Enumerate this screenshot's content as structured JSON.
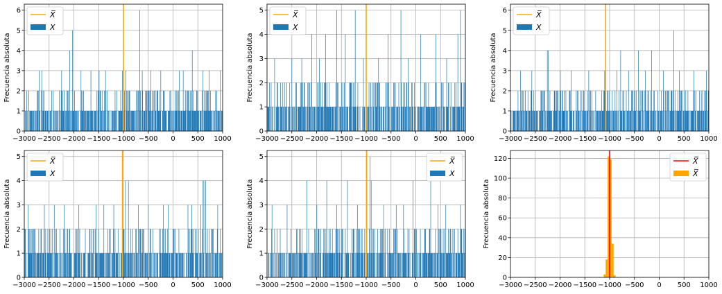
{
  "chart_data": [
    {
      "type": "bar",
      "ylabel": "Frecuencia absoluta",
      "xlim": [
        -3000,
        1000
      ],
      "ylim": [
        0,
        6.3
      ],
      "xticks": [
        "−3000",
        "−2500",
        "−2000",
        "−1500",
        "−1000",
        "−500",
        "0",
        "500",
        "1000"
      ],
      "yticks": [
        "0",
        "1",
        "2",
        "3",
        "4",
        "5",
        "6"
      ],
      "grid": true,
      "legend": {
        "placement": "upper-left",
        "entries": [
          {
            "label": "X̅",
            "kind": "line",
            "color": "#ffa500"
          },
          {
            "label": "X",
            "kind": "patch",
            "color": "#1f77b4"
          }
        ]
      },
      "mean_line": -1000,
      "series": [
        {
          "name": "X",
          "color": "#1f77b4",
          "tall_bars": [
            [
              -2700,
              3
            ],
            [
              -2650,
              3
            ],
            [
              -2420,
              2
            ],
            [
              -2250,
              3
            ],
            [
              -2080,
              4
            ],
            [
              -2030,
              5
            ],
            [
              -1860,
              3
            ],
            [
              -1660,
              3
            ],
            [
              -1490,
              3
            ],
            [
              -1360,
              3
            ],
            [
              -1020,
              3
            ],
            [
              -950,
              3
            ],
            [
              -670,
              6
            ],
            [
              -620,
              3
            ],
            [
              -450,
              3
            ],
            [
              -250,
              3
            ],
            [
              130,
              3
            ],
            [
              200,
              3
            ],
            [
              390,
              4
            ],
            [
              600,
              3
            ],
            [
              730,
              3
            ],
            [
              950,
              3
            ]
          ],
          "seed": 11
        }
      ]
    },
    {
      "type": "bar",
      "ylabel": "Frecuencia absoluta",
      "xlim": [
        -3000,
        1000
      ],
      "ylim": [
        0,
        5.25
      ],
      "xticks": [
        "−3000",
        "−2500",
        "−2000",
        "−1500",
        "−1000",
        "−500",
        "0",
        "500",
        "1000"
      ],
      "yticks": [
        "0",
        "1",
        "2",
        "3",
        "4",
        "5"
      ],
      "grid": true,
      "legend": {
        "placement": "upper-left",
        "entries": [
          {
            "label": "X̅",
            "kind": "line",
            "color": "#ffa500"
          },
          {
            "label": "X",
            "kind": "patch",
            "color": "#1f77b4"
          }
        ]
      },
      "mean_line": -1000,
      "series": [
        {
          "name": "X",
          "color": "#1f77b4",
          "tall_bars": [
            [
              -2850,
              3
            ],
            [
              -2500,
              3
            ],
            [
              -2300,
              3
            ],
            [
              -2100,
              4
            ],
            [
              -1940,
              3
            ],
            [
              -1820,
              4
            ],
            [
              -1600,
              5
            ],
            [
              -1420,
              4
            ],
            [
              -1220,
              5
            ],
            [
              -1060,
              3
            ],
            [
              -750,
              3
            ],
            [
              -560,
              4
            ],
            [
              -300,
              5
            ],
            [
              -150,
              3
            ],
            [
              100,
              4
            ],
            [
              400,
              4
            ],
            [
              620,
              3
            ],
            [
              850,
              4
            ],
            [
              900,
              5
            ]
          ],
          "seed": 23
        }
      ]
    },
    {
      "type": "bar",
      "ylabel": "Frecuencia absoluta",
      "xlim": [
        -3000,
        1000
      ],
      "ylim": [
        0,
        6.3
      ],
      "xticks": [
        "−3000",
        "−2500",
        "−2000",
        "−1500",
        "−1000",
        "−500",
        "0",
        "500",
        "1000"
      ],
      "yticks": [
        "0",
        "1",
        "2",
        "3",
        "4",
        "5",
        "6"
      ],
      "grid": true,
      "legend": {
        "placement": "upper-left",
        "entries": [
          {
            "label": "X̅",
            "kind": "line",
            "color": "#ffa500"
          },
          {
            "label": "X",
            "kind": "patch",
            "color": "#1f77b4"
          }
        ]
      },
      "mean_line": -1080,
      "series": [
        {
          "name": "X",
          "color": "#1f77b4",
          "tall_bars": [
            [
              -2800,
              3
            ],
            [
              -2570,
              3
            ],
            [
              -2260,
              4
            ],
            [
              -2240,
              4
            ],
            [
              -2000,
              3
            ],
            [
              -1780,
              3
            ],
            [
              -1420,
              3
            ],
            [
              -1100,
              3
            ],
            [
              -860,
              3
            ],
            [
              -780,
              4
            ],
            [
              -610,
              3
            ],
            [
              -420,
              4
            ],
            [
              -280,
              3
            ],
            [
              -150,
              4
            ],
            [
              80,
              3
            ],
            [
              290,
              5
            ],
            [
              400,
              3
            ],
            [
              700,
              3
            ],
            [
              950,
              3
            ]
          ],
          "seed": 37
        }
      ]
    },
    {
      "type": "bar",
      "ylabel": "Frecuencia absoluta",
      "xlim": [
        -3000,
        1000
      ],
      "ylim": [
        0,
        5.25
      ],
      "xticks": [
        "−3000",
        "−2500",
        "−2000",
        "−1500",
        "−1000",
        "−500",
        "0",
        "500",
        "1000"
      ],
      "yticks": [
        "0",
        "1",
        "2",
        "3",
        "4",
        "5"
      ],
      "grid": true,
      "legend": {
        "placement": "upper-left",
        "entries": [
          {
            "label": "X̅",
            "kind": "line",
            "color": "#ffa500"
          },
          {
            "label": "X",
            "kind": "patch",
            "color": "#1f77b4"
          }
        ]
      },
      "mean_line": -1020,
      "series": [
        {
          "name": "X",
          "color": "#1f77b4",
          "tall_bars": [
            [
              -2930,
              3
            ],
            [
              -2600,
              3
            ],
            [
              -2400,
              3
            ],
            [
              -2200,
              3
            ],
            [
              -1900,
              3
            ],
            [
              -1550,
              3
            ],
            [
              -1400,
              3
            ],
            [
              -1200,
              3
            ],
            [
              -960,
              4
            ],
            [
              -900,
              4
            ],
            [
              -700,
              3
            ],
            [
              -500,
              3
            ],
            [
              -200,
              3
            ],
            [
              -100,
              3
            ],
            [
              300,
              3
            ],
            [
              380,
              3
            ],
            [
              560,
              3
            ],
            [
              600,
              4
            ],
            [
              620,
              4
            ],
            [
              660,
              4
            ],
            [
              900,
              3
            ]
          ],
          "seed": 41
        }
      ]
    },
    {
      "type": "bar",
      "ylabel": "Frecuencia absoluta",
      "xlim": [
        -3000,
        1000
      ],
      "ylim": [
        0,
        5.25
      ],
      "xticks": [
        "−3000",
        "−2500",
        "−2000",
        "−1500",
        "−1000",
        "−500",
        "0",
        "500",
        "1000"
      ],
      "yticks": [
        "0",
        "1",
        "2",
        "3",
        "4",
        "5"
      ],
      "grid": true,
      "legend": {
        "placement": "upper-right",
        "entries": [
          {
            "label": "X̅",
            "kind": "line",
            "color": "#ffa500"
          },
          {
            "label": "X",
            "kind": "patch",
            "color": "#1f77b4"
          }
        ]
      },
      "mean_line": -990,
      "series": [
        {
          "name": "X",
          "color": "#1f77b4",
          "tall_bars": [
            [
              -2900,
              3
            ],
            [
              -2600,
              3
            ],
            [
              -2200,
              4
            ],
            [
              -2000,
              3
            ],
            [
              -1800,
              4
            ],
            [
              -1600,
              3
            ],
            [
              -1380,
              4
            ],
            [
              -1180,
              3
            ],
            [
              -930,
              5
            ],
            [
              -900,
              4
            ],
            [
              -650,
              3
            ],
            [
              -400,
              3
            ],
            [
              -250,
              3
            ],
            [
              -60,
              4
            ],
            [
              300,
              4
            ],
            [
              450,
              3
            ],
            [
              600,
              3
            ],
            [
              900,
              3
            ]
          ],
          "seed": 53
        }
      ]
    },
    {
      "type": "bar",
      "ylabel": "Frecuencia absoluta",
      "xlim": [
        -3000,
        1000
      ],
      "ylim": [
        0,
        128
      ],
      "xticks": [
        "−3000",
        "−2500",
        "−2000",
        "−1500",
        "−1000",
        "−500",
        "0",
        "500",
        "1000"
      ],
      "yticks": [
        "0",
        "20",
        "40",
        "60",
        "80",
        "100",
        "120"
      ],
      "grid": true,
      "legend": {
        "placement": "upper-right",
        "entries": [
          {
            "label": "X̅̅",
            "kind": "line",
            "color": "#ff0000"
          },
          {
            "label": "X̅",
            "kind": "patch",
            "color": "#ffa500"
          }
        ]
      },
      "mean_line": -1000,
      "mean_line_color": "#ff0000",
      "series": [
        {
          "name": "X̅",
          "color": "#ffa500",
          "bins": [
            [
              -1120,
              -1080,
              3
            ],
            [
              -1080,
              -1040,
              18
            ],
            [
              -1040,
              -1000,
              122
            ],
            [
              -1000,
              -960,
              119
            ],
            [
              -960,
              -920,
              34
            ],
            [
              -920,
              -880,
              2
            ]
          ]
        }
      ]
    }
  ]
}
